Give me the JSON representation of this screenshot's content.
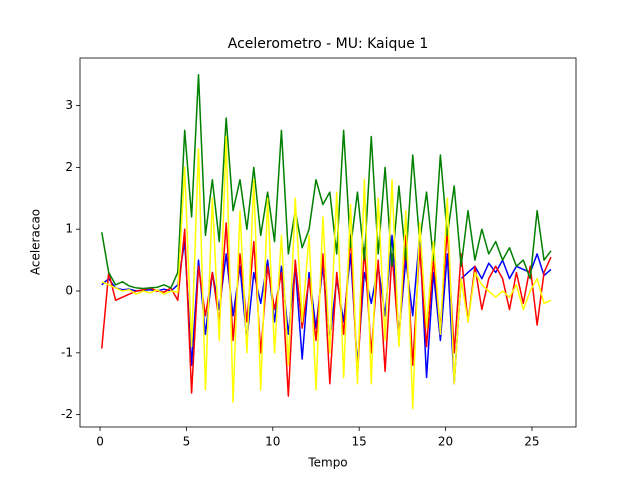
{
  "chart_data": {
    "type": "line",
    "title": "Acelerometro - MU: Kaique 1",
    "xlabel": "Tempo",
    "ylabel": "Aceleracao",
    "x": [
      0.1,
      0.5,
      0.9,
      1.3,
      1.7,
      2.1,
      2.5,
      2.9,
      3.3,
      3.7,
      4.1,
      4.5,
      4.9,
      5.3,
      5.7,
      6.1,
      6.5,
      6.9,
      7.3,
      7.7,
      8.1,
      8.5,
      8.9,
      9.3,
      9.7,
      10.1,
      10.5,
      10.9,
      11.3,
      11.7,
      12.1,
      12.5,
      12.9,
      13.3,
      13.7,
      14.1,
      14.5,
      14.9,
      15.3,
      15.7,
      16.1,
      16.5,
      16.9,
      17.3,
      17.7,
      18.1,
      18.5,
      18.9,
      19.3,
      19.7,
      20.1,
      20.5,
      20.9,
      21.3,
      21.7,
      22.1,
      22.5,
      22.9,
      23.3,
      23.7,
      24.1,
      24.5,
      24.9,
      25.3,
      25.7,
      26.1
    ],
    "series": [
      {
        "color": "#0000ff",
        "values": [
          0.1,
          0.2,
          0.05,
          0.02,
          0.03,
          0.0,
          0.01,
          0.02,
          0.0,
          0.03,
          0.0,
          0.1,
          0.8,
          -1.2,
          0.5,
          -0.7,
          0.3,
          -0.3,
          0.6,
          -0.4,
          0.4,
          -0.8,
          0.3,
          -0.2,
          0.5,
          -0.5,
          0.4,
          -0.7,
          0.4,
          -1.1,
          0.3,
          -0.6,
          0.4,
          -0.8,
          0.2,
          -0.5,
          0.6,
          -1.2,
          0.3,
          -0.2,
          0.4,
          -0.4,
          0.9,
          -0.7,
          0.5,
          -0.4,
          0.9,
          -1.4,
          0.3,
          -0.8,
          0.6,
          -1.5,
          0.2,
          0.3,
          0.4,
          0.2,
          0.45,
          0.3,
          0.5,
          0.2,
          0.4,
          0.35,
          0.3,
          0.6,
          0.25,
          0.35
        ]
      },
      {
        "color": "#ff0000",
        "values": [
          -0.93,
          0.3,
          -0.15,
          -0.1,
          -0.05,
          0.0,
          0.02,
          0.05,
          0.0,
          -0.02,
          0.05,
          -0.15,
          1.0,
          -1.65,
          0.4,
          -0.4,
          0.3,
          -0.5,
          1.1,
          -0.8,
          0.6,
          -0.5,
          0.8,
          -1.0,
          0.4,
          -0.3,
          0.3,
          -1.7,
          0.5,
          -0.6,
          0.2,
          -0.8,
          0.6,
          -1.5,
          0.3,
          -0.7,
          0.9,
          -1.4,
          0.7,
          -1.0,
          0.5,
          -1.3,
          0.6,
          -0.8,
          0.9,
          -1.2,
          0.7,
          -0.9,
          0.5,
          -0.6,
          1.0,
          -1.0,
          0.6,
          -0.5,
          0.4,
          -0.3,
          0.2,
          0.4,
          0.2,
          -0.3,
          0.3,
          -0.2,
          0.4,
          -0.55,
          0.3,
          0.55
        ]
      },
      {
        "color": "#008000",
        "values": [
          0.95,
          0.3,
          0.1,
          0.15,
          0.08,
          0.05,
          0.04,
          0.05,
          0.06,
          0.1,
          0.05,
          0.3,
          2.6,
          1.2,
          3.5,
          0.9,
          1.8,
          0.8,
          2.8,
          1.3,
          1.8,
          1.0,
          2.0,
          0.9,
          1.6,
          0.8,
          2.6,
          0.6,
          1.3,
          0.7,
          1.0,
          1.8,
          1.4,
          1.6,
          0.6,
          2.6,
          0.7,
          1.6,
          0.5,
          2.5,
          0.6,
          2.0,
          0.4,
          1.7,
          0.5,
          2.2,
          0.8,
          1.6,
          0.5,
          2.2,
          0.9,
          1.7,
          0.4,
          1.3,
          0.5,
          1.0,
          0.6,
          0.8,
          0.5,
          0.7,
          0.4,
          0.5,
          0.2,
          1.3,
          0.5,
          0.65
        ]
      },
      {
        "color": "#ffff00",
        "values": [
          0.15,
          0.1,
          0.05,
          0.0,
          0.02,
          -0.05,
          0.0,
          -0.03,
          0.02,
          -0.05,
          0.0,
          -0.02,
          2.0,
          -0.9,
          2.3,
          -1.6,
          1.5,
          -0.8,
          2.5,
          -1.8,
          1.3,
          -1.0,
          1.8,
          -1.6,
          1.5,
          -1.0,
          0.9,
          -1.2,
          1.5,
          -0.5,
          0.9,
          -1.6,
          1.2,
          -1.0,
          1.6,
          -1.4,
          1.4,
          -1.5,
          1.8,
          -1.5,
          1.5,
          -0.8,
          1.8,
          -0.9,
          1.3,
          -1.9,
          1.1,
          -0.6,
          0.8,
          -0.7,
          1.5,
          -1.5,
          0.2,
          -0.5,
          0.3,
          0.1,
          0.0,
          -0.1,
          0.0,
          -0.1,
          0.1,
          -0.3,
          0.0,
          0.2,
          -0.2,
          -0.15
        ]
      }
    ],
    "xlim": [
      -1.16,
      27.55
    ],
    "ylim": [
      -2.2,
      3.77
    ],
    "xticks": [
      0,
      5,
      10,
      15,
      20,
      25
    ],
    "yticks": [
      -2,
      -1,
      0,
      1,
      2,
      3
    ]
  }
}
